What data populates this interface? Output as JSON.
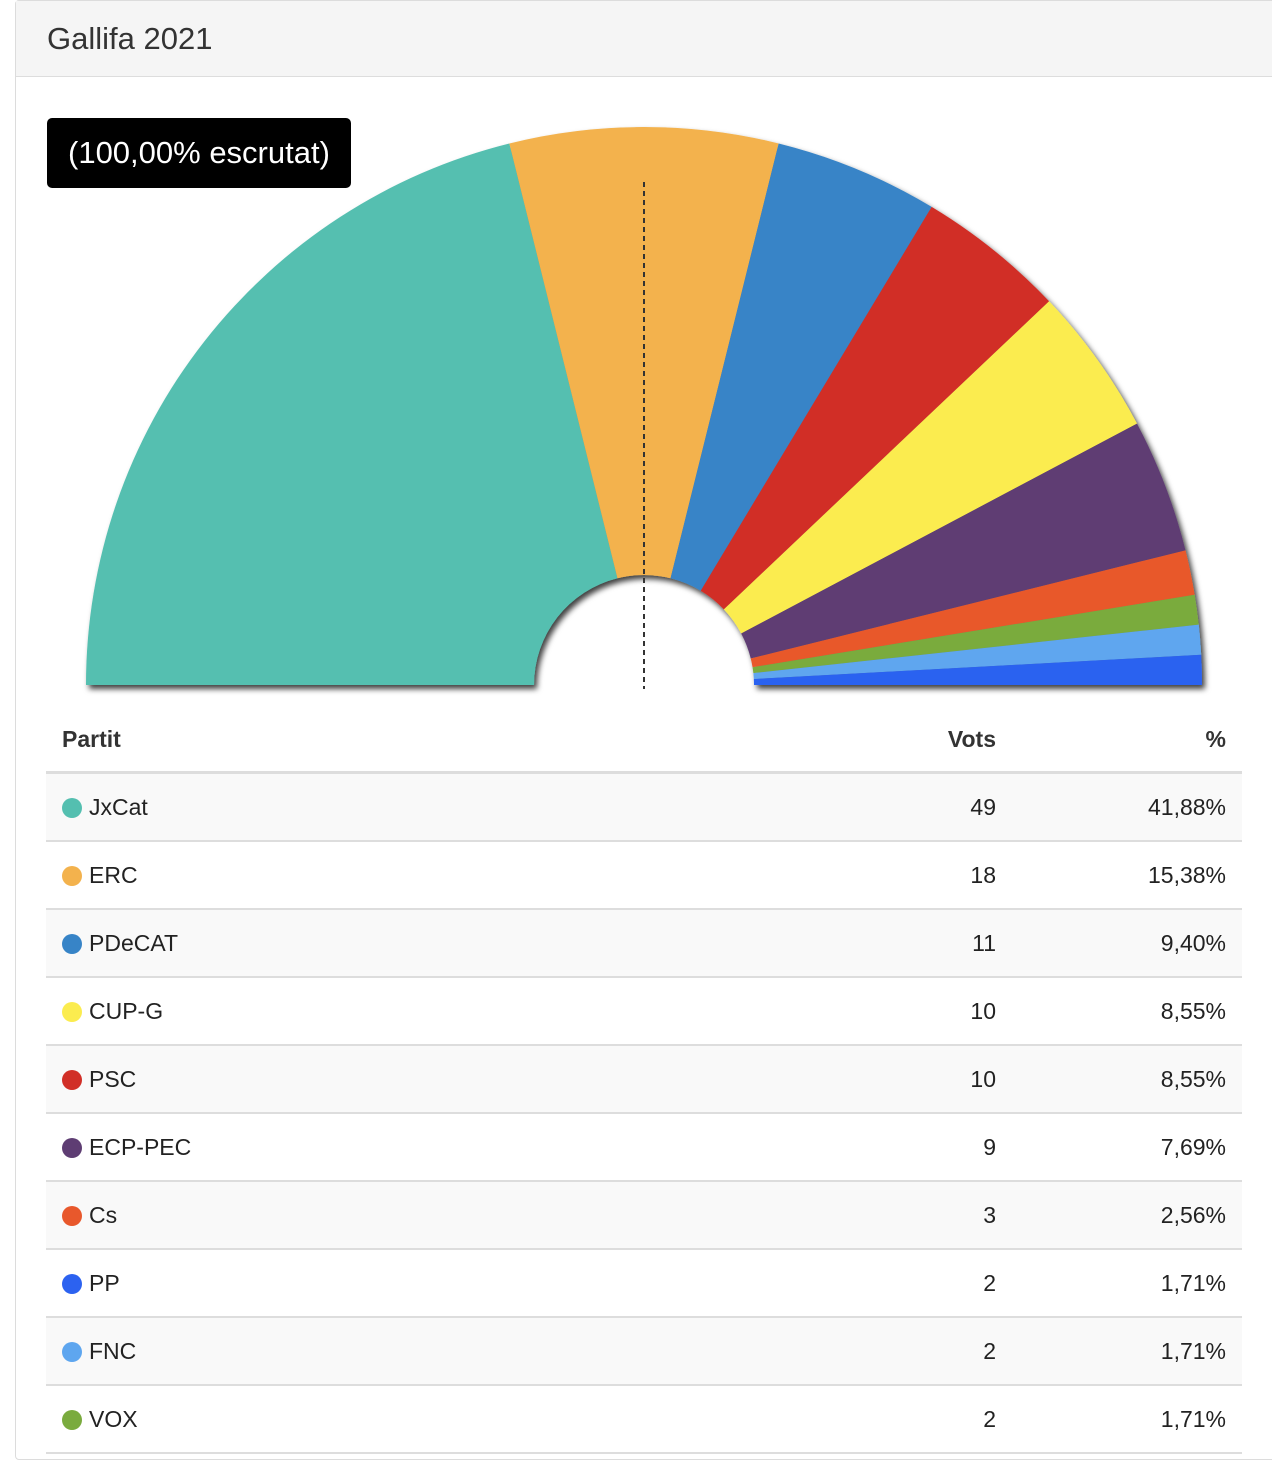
{
  "header": {
    "title": "Gallifa 2021"
  },
  "chart_data": {
    "type": "pie",
    "subtype": "half-donut",
    "badge": "(100,00% escrutat)",
    "majority_marker": "dashed-vertical-center",
    "slices": [
      {
        "party": "JxCat",
        "votes": 49,
        "percent": 41.88,
        "color": "#54bfb0"
      },
      {
        "party": "ERC",
        "votes": 18,
        "percent": 15.38,
        "color": "#f3b24d"
      },
      {
        "party": "PDeCAT",
        "votes": 11,
        "percent": 9.4,
        "color": "#3784c7"
      },
      {
        "party": "PSC",
        "votes": 10,
        "percent": 8.55,
        "color": "#d12f27"
      },
      {
        "party": "CUP-G",
        "votes": 10,
        "percent": 8.55,
        "color": "#fbec4f"
      },
      {
        "party": "ECP-PEC",
        "votes": 9,
        "percent": 7.69,
        "color": "#5e3d73"
      },
      {
        "party": "Cs",
        "votes": 3,
        "percent": 2.56,
        "color": "#e8582c"
      },
      {
        "party": "VOX",
        "votes": 2,
        "percent": 1.71,
        "color": "#7aab3e"
      },
      {
        "party": "FNC",
        "votes": 2,
        "percent": 1.71,
        "color": "#5ea6ef"
      },
      {
        "party": "PP",
        "votes": 2,
        "percent": 1.71,
        "color": "#2c62f0"
      }
    ]
  },
  "table": {
    "headers": {
      "party": "Partit",
      "votes": "Vots",
      "percent": "%"
    },
    "rows": [
      {
        "party": "JxCat",
        "votes": "49",
        "percent": "41,88%",
        "color": "#54bfb0"
      },
      {
        "party": "ERC",
        "votes": "18",
        "percent": "15,38%",
        "color": "#f3b24d"
      },
      {
        "party": "PDeCAT",
        "votes": "11",
        "percent": "9,40%",
        "color": "#3784c7"
      },
      {
        "party": "CUP-G",
        "votes": "10",
        "percent": "8,55%",
        "color": "#fbec4f"
      },
      {
        "party": "PSC",
        "votes": "10",
        "percent": "8,55%",
        "color": "#d12f27"
      },
      {
        "party": "ECP-PEC",
        "votes": "9",
        "percent": "7,69%",
        "color": "#5e3d73"
      },
      {
        "party": "Cs",
        "votes": "3",
        "percent": "2,56%",
        "color": "#e8582c"
      },
      {
        "party": "PP",
        "votes": "2",
        "percent": "1,71%",
        "color": "#2c62f0"
      },
      {
        "party": "FNC",
        "votes": "2",
        "percent": "1,71%",
        "color": "#5ea6ef"
      },
      {
        "party": "VOX",
        "votes": "2",
        "percent": "1,71%",
        "color": "#7aab3e"
      }
    ]
  }
}
